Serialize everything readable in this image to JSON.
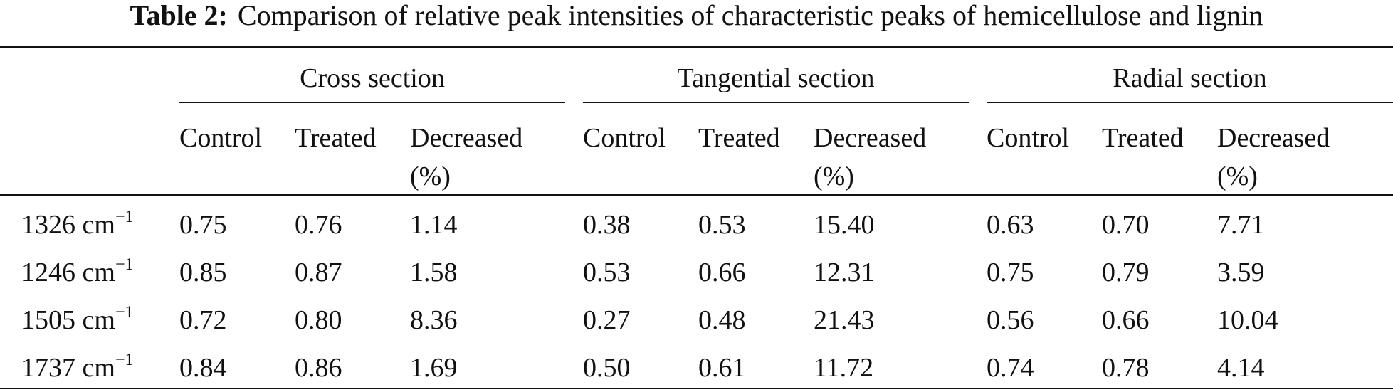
{
  "caption": {
    "label": "Table 2:",
    "text": "Comparison of relative peak intensities of characteristic peaks of hemicellulose and lignin"
  },
  "groups": [
    "Cross section",
    "Tangential section",
    "Radial section"
  ],
  "subheaders": {
    "control": "Control",
    "treated": "Treated",
    "decreased_line1": "Decreased",
    "decreased_line2": "(%)"
  },
  "unit": {
    "base": "cm",
    "exponent": "−1"
  },
  "rows": [
    {
      "peak": "1326",
      "values": [
        "0.75",
        "0.76",
        "1.14",
        "0.38",
        "0.53",
        "15.40",
        "0.63",
        "0.70",
        "7.71"
      ]
    },
    {
      "peak": "1246",
      "values": [
        "0.85",
        "0.87",
        "1.58",
        "0.53",
        "0.66",
        "12.31",
        "0.75",
        "0.79",
        "3.59"
      ]
    },
    {
      "peak": "1505",
      "values": [
        "0.72",
        "0.80",
        "8.36",
        "0.27",
        "0.48",
        "21.43",
        "0.56",
        "0.66",
        "10.04"
      ]
    },
    {
      "peak": "1737",
      "values": [
        "0.84",
        "0.86",
        "1.69",
        "0.50",
        "0.61",
        "11.72",
        "0.74",
        "0.78",
        "4.14"
      ]
    }
  ]
}
